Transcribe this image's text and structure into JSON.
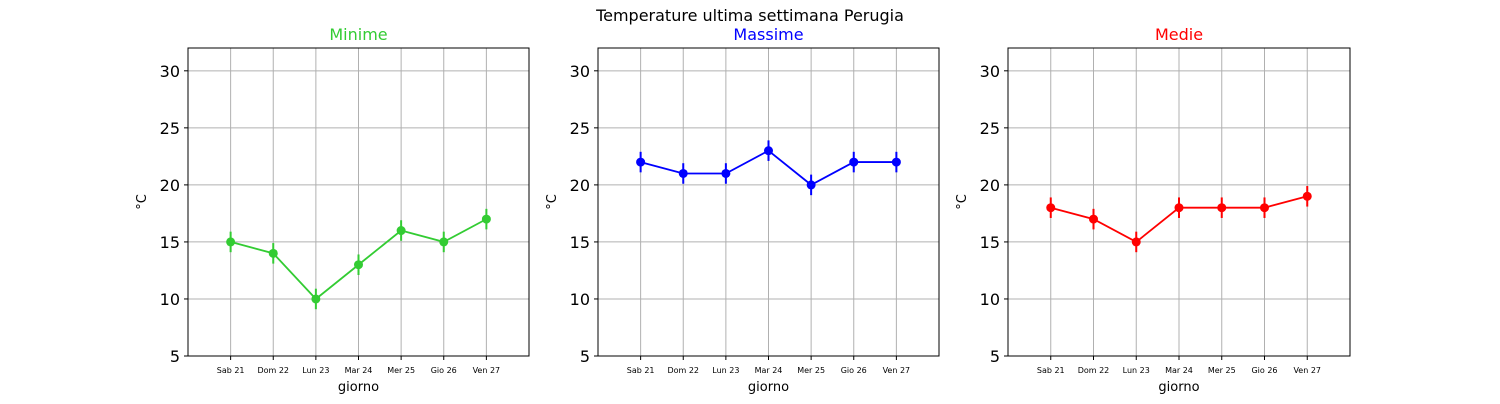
{
  "suptitle": "Temperature ultima settimana Perugia",
  "chart_data": [
    {
      "type": "line",
      "title": "Minime",
      "color": "#33cc33",
      "xlabel": "giorno",
      "ylabel": "°C",
      "categories": [
        "Sab 21",
        "Dom 22",
        "Lun 23",
        "Mar 24",
        "Mer 25",
        "Gio 26",
        "Ven 27"
      ],
      "values": [
        15,
        14,
        10,
        13,
        16,
        15,
        17
      ],
      "error": 0.9,
      "ylim": [
        5,
        32
      ],
      "yticks": [
        5,
        10,
        15,
        20,
        25,
        30
      ],
      "grid": true
    },
    {
      "type": "line",
      "title": "Massime",
      "color": "#0000ff",
      "xlabel": "giorno",
      "ylabel": "°C",
      "categories": [
        "Sab 21",
        "Dom 22",
        "Lun 23",
        "Mar 24",
        "Mer 25",
        "Gio 26",
        "Ven 27"
      ],
      "values": [
        22,
        21,
        21,
        23,
        20,
        22,
        22
      ],
      "error": 0.9,
      "ylim": [
        5,
        32
      ],
      "yticks": [
        5,
        10,
        15,
        20,
        25,
        30
      ],
      "grid": true
    },
    {
      "type": "line",
      "title": "Medie",
      "color": "#ff0000",
      "xlabel": "giorno",
      "ylabel": "°C",
      "categories": [
        "Sab 21",
        "Dom 22",
        "Lun 23",
        "Mar 24",
        "Mer 25",
        "Gio 26",
        "Ven 27"
      ],
      "values": [
        18,
        17,
        15,
        18,
        18,
        18,
        19
      ],
      "error": 0.9,
      "ylim": [
        5,
        32
      ],
      "yticks": [
        5,
        10,
        15,
        20,
        25,
        30
      ],
      "grid": true
    }
  ]
}
